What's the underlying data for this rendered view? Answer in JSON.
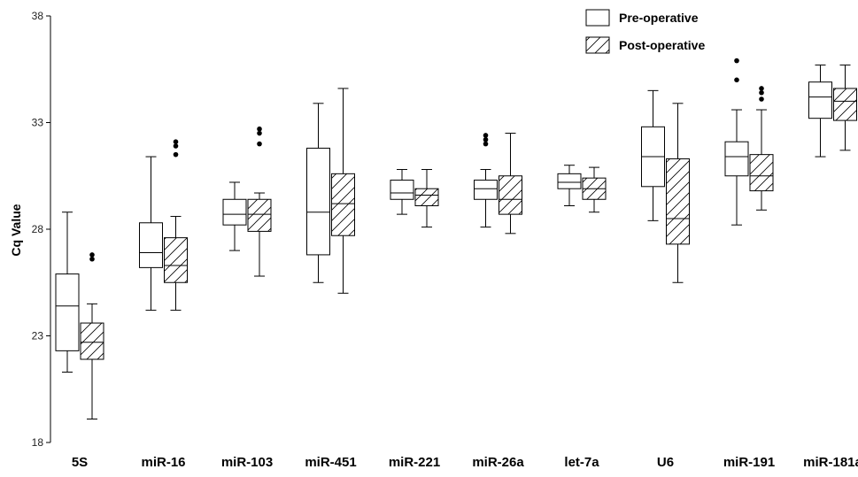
{
  "chart_data": {
    "type": "box",
    "title": "",
    "xlabel": "",
    "ylabel": "Cq Value",
    "ylim": [
      18,
      38
    ],
    "yticks": [
      18,
      23,
      28,
      33,
      38
    ],
    "categories": [
      "5S",
      "miR-16",
      "miR-103",
      "miR-451",
      "miR-221",
      "miR-26a",
      "let-7a",
      "U6",
      "miR-191",
      "miR-181a"
    ],
    "legend_position": "top-right",
    "series": [
      {
        "name": "Pre-operative",
        "pattern": "none",
        "boxes": [
          {
            "min": 21.3,
            "q1": 22.3,
            "median": 24.4,
            "q3": 25.9,
            "max": 28.8,
            "outliers": []
          },
          {
            "min": 24.2,
            "q1": 26.2,
            "median": 26.9,
            "q3": 28.3,
            "max": 31.4,
            "outliers": []
          },
          {
            "min": 27.0,
            "q1": 28.2,
            "median": 28.7,
            "q3": 29.4,
            "max": 30.2,
            "outliers": []
          },
          {
            "min": 25.5,
            "q1": 26.8,
            "median": 28.8,
            "q3": 31.8,
            "max": 33.9,
            "outliers": []
          },
          {
            "min": 28.7,
            "q1": 29.4,
            "median": 29.7,
            "q3": 30.3,
            "max": 30.8,
            "outliers": []
          },
          {
            "min": 28.1,
            "q1": 29.4,
            "median": 29.9,
            "q3": 30.3,
            "max": 30.8,
            "outliers": [
              32.0,
              32.2,
              32.4
            ]
          },
          {
            "min": 29.1,
            "q1": 29.9,
            "median": 30.2,
            "q3": 30.6,
            "max": 31.0,
            "outliers": []
          },
          {
            "min": 28.4,
            "q1": 30.0,
            "median": 31.4,
            "q3": 32.8,
            "max": 34.5,
            "outliers": []
          },
          {
            "min": 28.2,
            "q1": 30.5,
            "median": 31.4,
            "q3": 32.1,
            "max": 33.6,
            "outliers": [
              35.0,
              35.9
            ]
          },
          {
            "min": 31.4,
            "q1": 33.2,
            "median": 34.2,
            "q3": 34.9,
            "max": 35.7,
            "outliers": []
          }
        ]
      },
      {
        "name": "Post-operative",
        "pattern": "hatched",
        "boxes": [
          {
            "min": 19.1,
            "q1": 21.9,
            "median": 22.7,
            "q3": 23.6,
            "max": 24.5,
            "outliers": [
              26.6,
              26.8
            ]
          },
          {
            "min": 24.2,
            "q1": 25.5,
            "median": 26.3,
            "q3": 27.6,
            "max": 28.6,
            "outliers": [
              31.5,
              31.9,
              32.1
            ]
          },
          {
            "min": 25.8,
            "q1": 27.9,
            "median": 28.7,
            "q3": 29.4,
            "max": 29.7,
            "outliers": [
              32.0,
              32.5,
              32.7
            ]
          },
          {
            "min": 25.0,
            "q1": 27.7,
            "median": 29.2,
            "q3": 30.6,
            "max": 34.6,
            "outliers": []
          },
          {
            "min": 28.1,
            "q1": 29.1,
            "median": 29.6,
            "q3": 29.9,
            "max": 30.8,
            "outliers": []
          },
          {
            "min": 27.8,
            "q1": 28.7,
            "median": 29.4,
            "q3": 30.5,
            "max": 32.5,
            "outliers": []
          },
          {
            "min": 28.8,
            "q1": 29.4,
            "median": 29.9,
            "q3": 30.4,
            "max": 30.9,
            "outliers": []
          },
          {
            "min": 25.5,
            "q1": 27.3,
            "median": 28.5,
            "q3": 31.3,
            "max": 33.9,
            "outliers": []
          },
          {
            "min": 28.9,
            "q1": 29.8,
            "median": 30.5,
            "q3": 31.5,
            "max": 33.6,
            "outliers": [
              34.1,
              34.4,
              34.6
            ]
          },
          {
            "min": 31.7,
            "q1": 33.1,
            "median": 34.0,
            "q3": 34.6,
            "max": 35.7,
            "outliers": []
          }
        ]
      }
    ]
  },
  "colors": {
    "stroke": "#000000",
    "background": "#ffffff",
    "outlier": "#000000"
  }
}
